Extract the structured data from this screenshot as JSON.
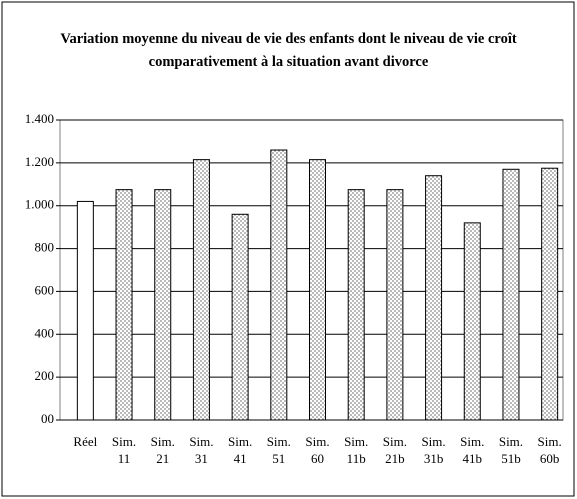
{
  "chart_data": {
    "type": "bar",
    "title": "Variation moyenne du niveau de vie des enfants dont le niveau de vie croît comparativement à la situation avant divorce",
    "categories": [
      "Réel",
      "Sim. 11",
      "Sim. 21",
      "Sim. 31",
      "Sim. 41",
      "Sim. 51",
      "Sim. 60",
      "Sim. 11b",
      "Sim. 21b",
      "Sim. 31b",
      "Sim. 41b",
      "Sim. 51b",
      "Sim. 60b"
    ],
    "values": [
      1020,
      1075,
      1075,
      1215,
      960,
      1260,
      1215,
      1075,
      1075,
      1140,
      920,
      1170,
      1175
    ],
    "colors": [
      "#ffffff",
      "#888888",
      "#888888",
      "#888888",
      "#888888",
      "#888888",
      "#888888",
      "#888888",
      "#888888",
      "#888888",
      "#888888",
      "#888888",
      "#888888"
    ],
    "ylim": [
      0,
      1400
    ],
    "yticks": [
      {
        "value": 0,
        "label": "00"
      },
      200,
      400,
      600,
      800,
      {
        "value": 1000,
        "label": "1.000"
      },
      {
        "value": 1200,
        "label": "1.200"
      },
      {
        "value": 1400,
        "label": "1.400"
      }
    ],
    "grid": true
  }
}
